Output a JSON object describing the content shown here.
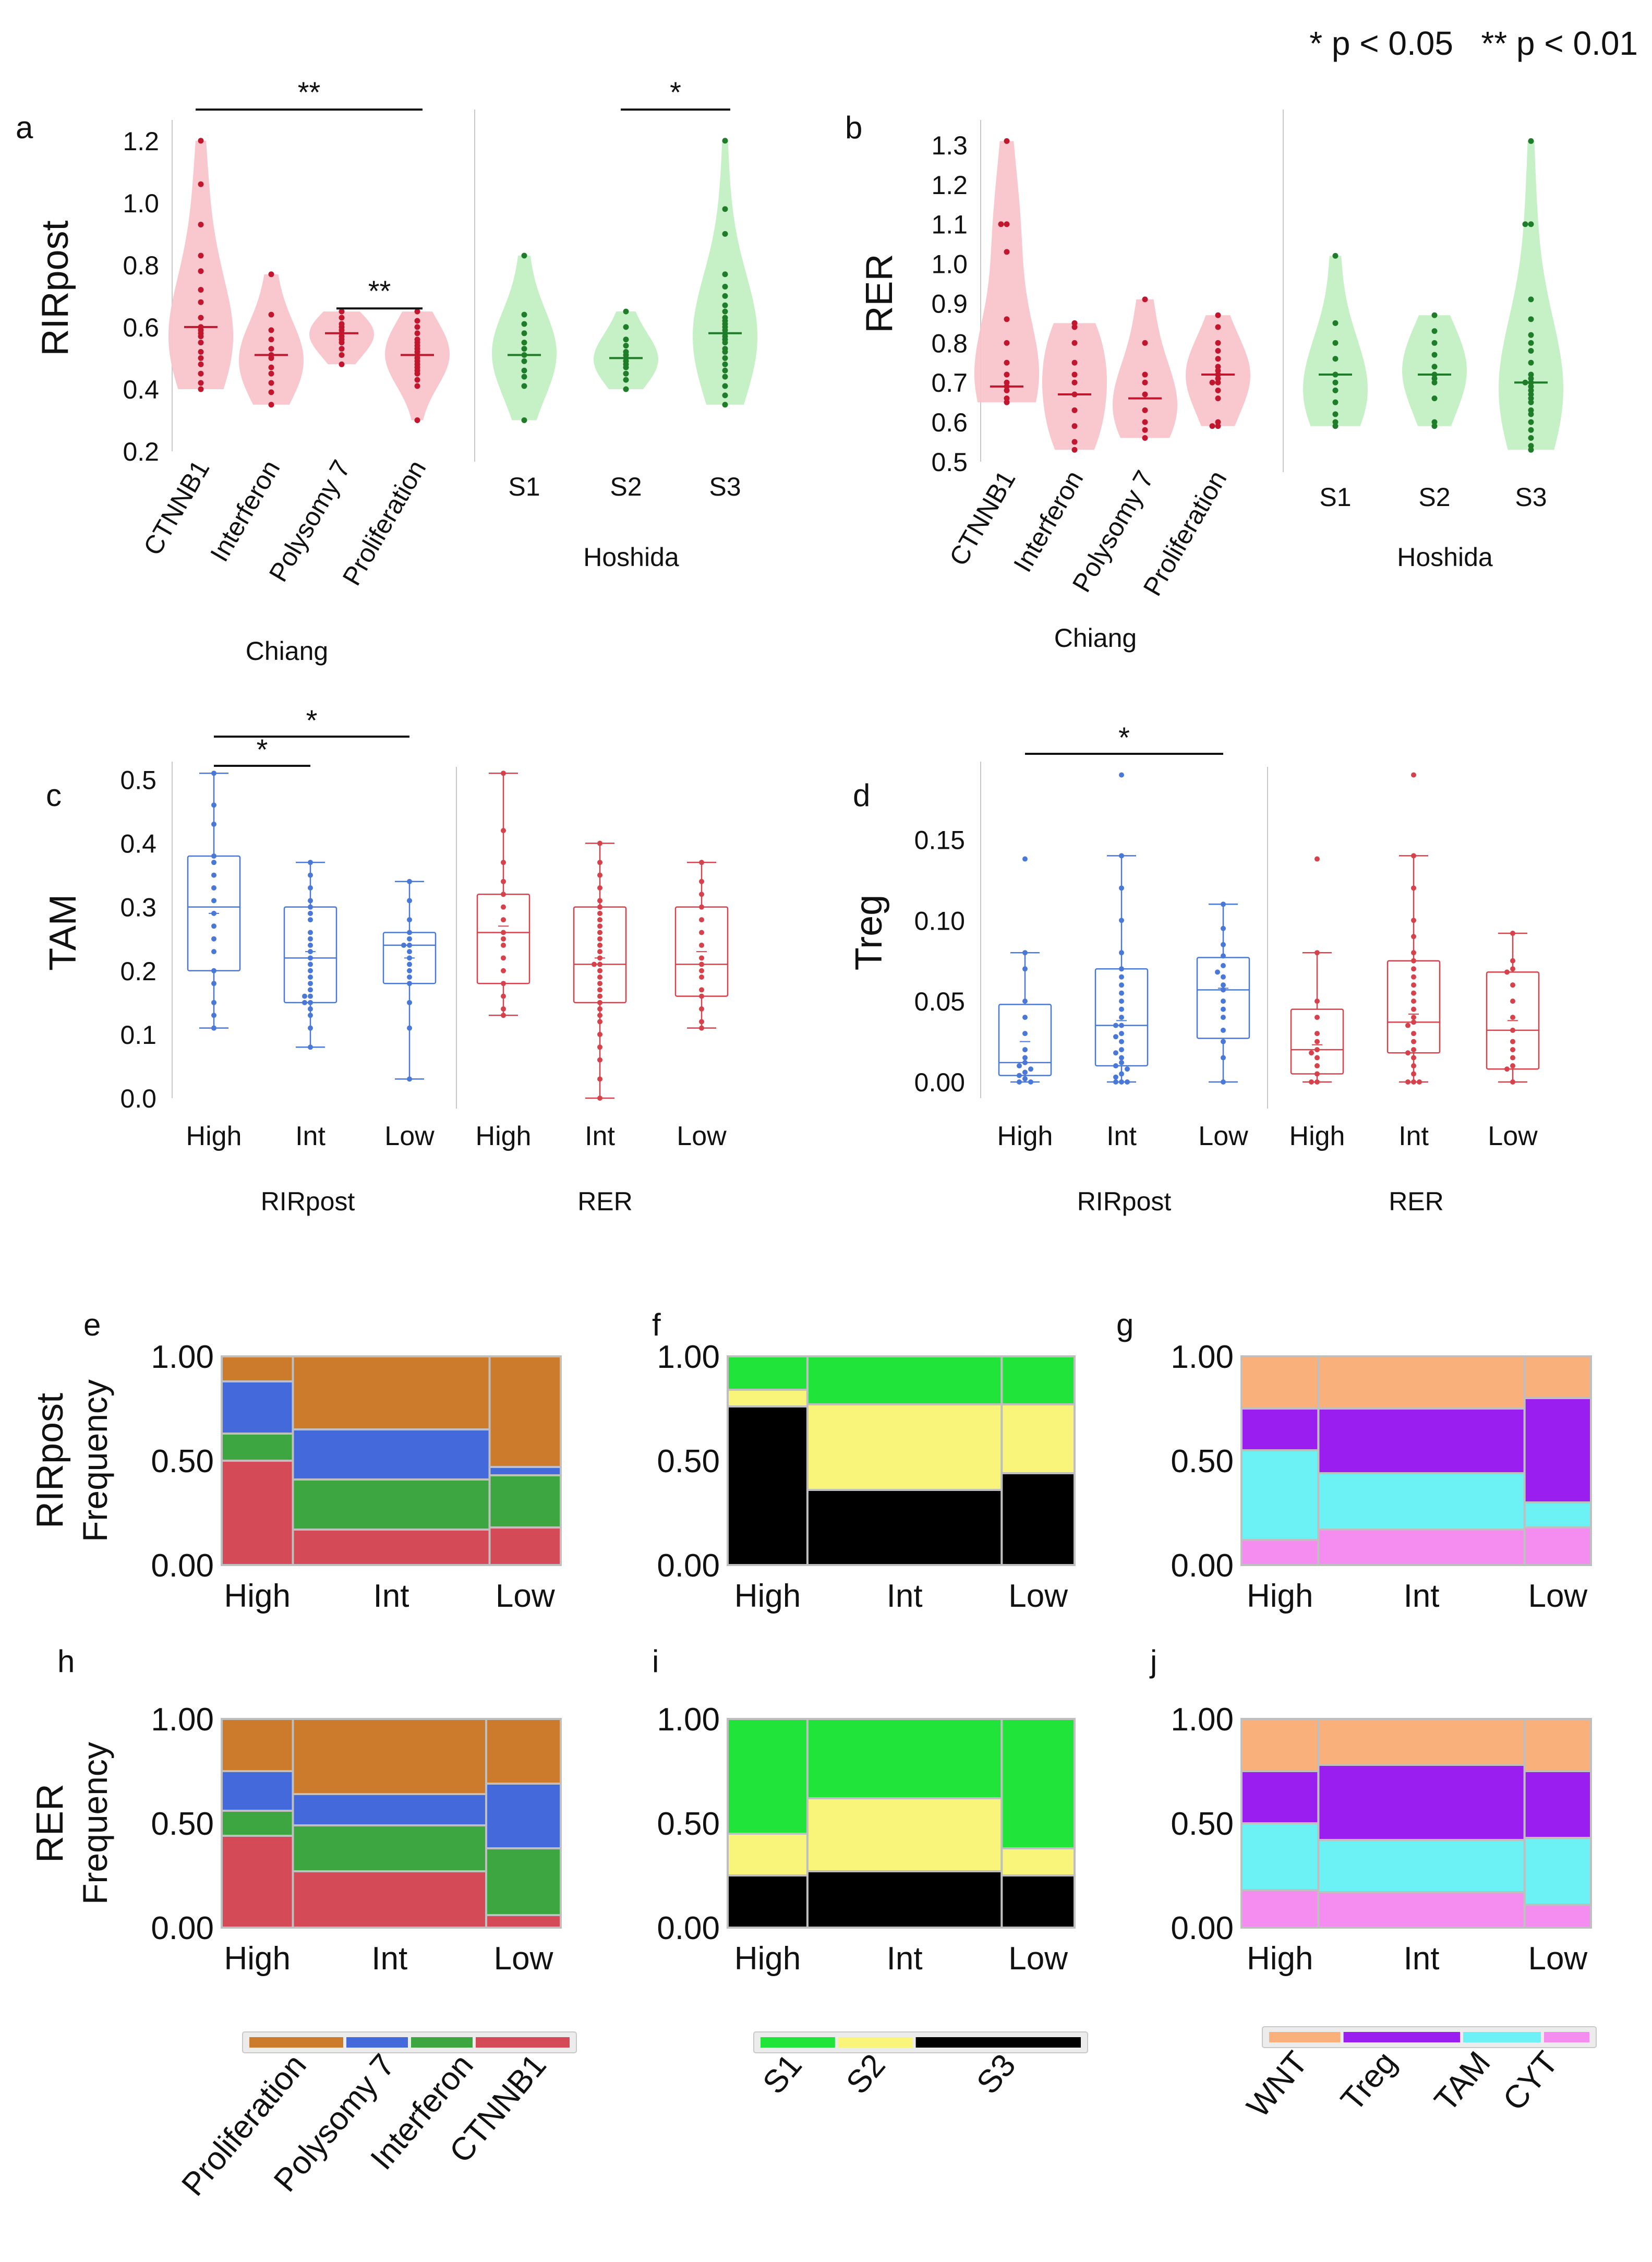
{
  "significance_legend": "* p < 0.05   ** p < 0.01",
  "panel_letters": {
    "a": "a",
    "b": "b",
    "c": "c",
    "d": "d",
    "e": "e",
    "f": "f",
    "g": "g",
    "h": "h",
    "i": "i",
    "j": "j"
  },
  "colors": {
    "chiang_fill": "#f9c5cc",
    "chiang_dot": "#c0172f",
    "hoshida_fill": "#c3f0c3",
    "hoshida_dot": "#1f7d2a",
    "rirpost_box": "#4a78d6",
    "rer_box": "#d6424c",
    "frame": "#bfbfbf"
  },
  "chart_data": [
    {
      "id": "a",
      "type": "violin",
      "ylabel": "RIRpost",
      "ylim": [
        0.2,
        1.25
      ],
      "yticks": [
        "0.2",
        "0.4",
        "0.6",
        "0.8",
        "1.0",
        "1.2"
      ],
      "groups": [
        {
          "label": "CTNNB1",
          "group": "Chiang",
          "values": [
            1.2,
            1.06,
            0.93,
            0.83,
            0.78,
            0.72,
            0.68,
            0.63,
            0.6,
            0.59,
            0.58,
            0.57,
            0.55,
            0.52,
            0.5,
            0.48,
            0.45,
            0.42,
            0.4
          ],
          "median": 0.6
        },
        {
          "label": "Interferon",
          "group": "Chiang",
          "values": [
            0.77,
            0.64,
            0.59,
            0.56,
            0.53,
            0.51,
            0.5,
            0.47,
            0.45,
            0.42,
            0.39,
            0.35
          ],
          "median": 0.51
        },
        {
          "label": "Polysomy 7",
          "group": "Chiang",
          "values": [
            0.65,
            0.63,
            0.61,
            0.6,
            0.59,
            0.58,
            0.57,
            0.56,
            0.55,
            0.53,
            0.51,
            0.48
          ],
          "median": 0.58
        },
        {
          "label": "Proliferation",
          "group": "Chiang",
          "values": [
            0.65,
            0.62,
            0.6,
            0.58,
            0.56,
            0.55,
            0.54,
            0.53,
            0.52,
            0.51,
            0.5,
            0.49,
            0.48,
            0.47,
            0.46,
            0.45,
            0.43,
            0.41,
            0.3
          ],
          "median": 0.51
        }
      ],
      "groups2": [
        {
          "label": "S1",
          "group": "Hoshida",
          "values": [
            0.83,
            0.64,
            0.61,
            0.58,
            0.55,
            0.53,
            0.51,
            0.49,
            0.46,
            0.44,
            0.41,
            0.3
          ],
          "median": 0.51
        },
        {
          "label": "S2",
          "group": "Hoshida",
          "values": [
            0.65,
            0.6,
            0.56,
            0.54,
            0.52,
            0.51,
            0.5,
            0.49,
            0.48,
            0.47,
            0.45,
            0.43,
            0.4
          ],
          "median": 0.5
        },
        {
          "label": "S3",
          "group": "Hoshida",
          "values": [
            1.2,
            0.98,
            0.9,
            0.77,
            0.73,
            0.7,
            0.67,
            0.65,
            0.63,
            0.62,
            0.61,
            0.6,
            0.59,
            0.58,
            0.57,
            0.56,
            0.55,
            0.53,
            0.52,
            0.5,
            0.48,
            0.46,
            0.44,
            0.41,
            0.38,
            0.35
          ],
          "median": 0.58
        }
      ],
      "group_labels": [
        "Chiang",
        "Hoshida"
      ],
      "annotations": [
        {
          "from": 0,
          "to": 3,
          "label": "**",
          "level": 0
        },
        {
          "from": 2,
          "to": 3,
          "label": "**",
          "level": 1
        },
        {
          "from": 5,
          "to": 6,
          "label": "*",
          "level": 0
        }
      ]
    },
    {
      "id": "b",
      "type": "violin",
      "ylabel": "RER",
      "ylim": [
        0.5,
        1.35
      ],
      "yticks": [
        "0.5",
        "0.6",
        "0.7",
        "0.8",
        "0.9",
        "1.0",
        "1.1",
        "1.2",
        "1.3"
      ],
      "groups": [
        {
          "label": "CTNNB1",
          "group": "Chiang",
          "values": [
            1.31,
            1.1,
            1.1,
            1.03,
            0.86,
            0.8,
            0.75,
            0.72,
            0.7,
            0.69,
            0.68,
            0.66,
            0.65
          ],
          "median": 0.69
        },
        {
          "label": "Interferon",
          "group": "Chiang",
          "values": [
            0.85,
            0.84,
            0.8,
            0.75,
            0.72,
            0.7,
            0.67,
            0.63,
            0.59,
            0.55,
            0.53
          ],
          "median": 0.67
        },
        {
          "label": "Polysomy 7",
          "group": "Chiang",
          "values": [
            0.91,
            0.8,
            0.72,
            0.7,
            0.67,
            0.63,
            0.6,
            0.58,
            0.56
          ],
          "median": 0.66
        },
        {
          "label": "Proliferation",
          "group": "Chiang",
          "values": [
            0.87,
            0.84,
            0.8,
            0.78,
            0.76,
            0.74,
            0.73,
            0.72,
            0.71,
            0.7,
            0.7,
            0.68,
            0.66,
            0.6,
            0.59,
            0.59
          ],
          "median": 0.72
        }
      ],
      "groups2": [
        {
          "label": "S1",
          "group": "Hoshida",
          "values": [
            1.02,
            0.85,
            0.8,
            0.76,
            0.72,
            0.7,
            0.68,
            0.65,
            0.62,
            0.6,
            0.59
          ],
          "median": 0.72
        },
        {
          "label": "S2",
          "group": "Hoshida",
          "values": [
            0.87,
            0.83,
            0.8,
            0.77,
            0.74,
            0.72,
            0.71,
            0.7,
            0.66,
            0.6,
            0.59
          ],
          "median": 0.72
        },
        {
          "label": "S3",
          "group": "Hoshida",
          "values": [
            1.31,
            1.1,
            1.1,
            0.91,
            0.86,
            0.82,
            0.8,
            0.78,
            0.75,
            0.72,
            0.71,
            0.7,
            0.7,
            0.69,
            0.68,
            0.67,
            0.66,
            0.65,
            0.63,
            0.62,
            0.6,
            0.58,
            0.56,
            0.54,
            0.53
          ],
          "median": 0.7
        }
      ],
      "group_labels": [
        "Chiang",
        "Hoshida"
      ],
      "annotations": []
    },
    {
      "id": "c",
      "type": "box",
      "ylabel": "TAM",
      "ylim": [
        0.0,
        0.52
      ],
      "yticks": [
        "0.0",
        "0.1",
        "0.2",
        "0.3",
        "0.4",
        "0.5"
      ],
      "groups": [
        {
          "label": "High",
          "group": "RIRpost",
          "min": 0.11,
          "q1": 0.2,
          "median": 0.3,
          "q3": 0.38,
          "max": 0.51,
          "mean": 0.29,
          "values": [
            0.51,
            0.46,
            0.43,
            0.38,
            0.37,
            0.35,
            0.33,
            0.31,
            0.29,
            0.27,
            0.25,
            0.23,
            0.2,
            0.18,
            0.15,
            0.13,
            0.11
          ]
        },
        {
          "label": "Int",
          "group": "RIRpost",
          "min": 0.08,
          "q1": 0.15,
          "median": 0.22,
          "q3": 0.3,
          "max": 0.37,
          "mean": 0.23,
          "values": [
            0.37,
            0.35,
            0.33,
            0.31,
            0.3,
            0.29,
            0.28,
            0.26,
            0.25,
            0.24,
            0.23,
            0.22,
            0.21,
            0.2,
            0.19,
            0.18,
            0.17,
            0.16,
            0.16,
            0.15,
            0.15,
            0.14,
            0.13,
            0.11,
            0.08
          ]
        },
        {
          "label": "Low",
          "group": "RIRpost",
          "min": 0.03,
          "q1": 0.18,
          "median": 0.24,
          "q3": 0.26,
          "max": 0.34,
          "mean": 0.22,
          "values": [
            0.34,
            0.31,
            0.28,
            0.26,
            0.25,
            0.24,
            0.24,
            0.23,
            0.22,
            0.21,
            0.2,
            0.19,
            0.18,
            0.15,
            0.11,
            0.03
          ]
        },
        {
          "label": "High",
          "group": "RER",
          "min": 0.13,
          "q1": 0.18,
          "median": 0.26,
          "q3": 0.32,
          "max": 0.51,
          "mean": 0.27,
          "values": [
            0.51,
            0.42,
            0.37,
            0.34,
            0.32,
            0.3,
            0.28,
            0.26,
            0.25,
            0.24,
            0.22,
            0.2,
            0.18,
            0.16,
            0.14,
            0.13
          ]
        },
        {
          "label": "Int",
          "group": "RER",
          "min": 0.0,
          "q1": 0.15,
          "median": 0.21,
          "q3": 0.3,
          "max": 0.4,
          "mean": 0.22,
          "values": [
            0.4,
            0.37,
            0.35,
            0.33,
            0.31,
            0.3,
            0.29,
            0.28,
            0.27,
            0.26,
            0.25,
            0.24,
            0.23,
            0.22,
            0.21,
            0.21,
            0.2,
            0.19,
            0.18,
            0.17,
            0.16,
            0.15,
            0.14,
            0.13,
            0.12,
            0.1,
            0.08,
            0.06,
            0.03,
            0.0
          ]
        },
        {
          "label": "Low",
          "group": "RER",
          "min": 0.11,
          "q1": 0.16,
          "median": 0.21,
          "q3": 0.3,
          "max": 0.37,
          "mean": 0.23,
          "values": [
            0.37,
            0.34,
            0.32,
            0.3,
            0.28,
            0.26,
            0.24,
            0.22,
            0.21,
            0.2,
            0.19,
            0.17,
            0.16,
            0.14,
            0.12,
            0.11
          ]
        }
      ],
      "group_labels": [
        "RIRpost",
        "RER"
      ],
      "annotations": [
        {
          "from": 0,
          "to": 1,
          "label": "*",
          "level": 0
        },
        {
          "from": 0,
          "to": 2,
          "label": "*",
          "level": 1
        }
      ]
    },
    {
      "id": "d",
      "type": "box",
      "ylabel": "Treg",
      "ylim": [
        -0.01,
        0.195
      ],
      "ytickvals": [
        0.0,
        0.05,
        0.1,
        0.15
      ],
      "yticks": [
        "0.00",
        "0.05",
        "0.10",
        "0.15"
      ],
      "groups": [
        {
          "label": "High",
          "group": "RIRpost",
          "min": 0.0,
          "q1": 0.004,
          "median": 0.012,
          "q3": 0.048,
          "max": 0.08,
          "mean": 0.025,
          "values": [
            0.138,
            0.08,
            0.07,
            0.05,
            0.04,
            0.03,
            0.02,
            0.015,
            0.012,
            0.01,
            0.008,
            0.006,
            0.004,
            0.002,
            0.0,
            0.0
          ]
        },
        {
          "label": "Int",
          "group": "RIRpost",
          "min": 0.0,
          "q1": 0.01,
          "median": 0.035,
          "q3": 0.07,
          "max": 0.14,
          "mean": 0.038,
          "values": [
            0.19,
            0.14,
            0.12,
            0.1,
            0.08,
            0.07,
            0.065,
            0.06,
            0.055,
            0.05,
            0.045,
            0.04,
            0.035,
            0.035,
            0.03,
            0.028,
            0.025,
            0.02,
            0.018,
            0.015,
            0.012,
            0.01,
            0.008,
            0.005,
            0.003,
            0.0,
            0.0,
            0.0
          ]
        },
        {
          "label": "Low",
          "group": "RIRpost",
          "min": 0.0,
          "q1": 0.027,
          "median": 0.057,
          "q3": 0.077,
          "max": 0.11,
          "mean": 0.058,
          "values": [
            0.11,
            0.095,
            0.085,
            0.078,
            0.072,
            0.068,
            0.065,
            0.06,
            0.057,
            0.05,
            0.045,
            0.04,
            0.032,
            0.025,
            0.015,
            0.0
          ]
        },
        {
          "label": "High",
          "group": "RER",
          "min": 0.0,
          "q1": 0.005,
          "median": 0.02,
          "q3": 0.045,
          "max": 0.08,
          "mean": 0.023,
          "values": [
            0.138,
            0.08,
            0.05,
            0.04,
            0.03,
            0.025,
            0.02,
            0.018,
            0.015,
            0.01,
            0.005,
            0.0,
            0.0
          ]
        },
        {
          "label": "Int",
          "group": "RER",
          "min": 0.0,
          "q1": 0.018,
          "median": 0.037,
          "q3": 0.075,
          "max": 0.14,
          "mean": 0.042,
          "values": [
            0.19,
            0.14,
            0.12,
            0.1,
            0.09,
            0.08,
            0.075,
            0.07,
            0.065,
            0.06,
            0.055,
            0.05,
            0.045,
            0.04,
            0.037,
            0.035,
            0.03,
            0.025,
            0.02,
            0.018,
            0.015,
            0.01,
            0.005,
            0.0,
            0.0,
            0.0
          ]
        },
        {
          "label": "Low",
          "group": "RER",
          "min": 0.0,
          "q1": 0.008,
          "median": 0.032,
          "q3": 0.068,
          "max": 0.092,
          "mean": 0.038,
          "values": [
            0.092,
            0.075,
            0.07,
            0.068,
            0.06,
            0.05,
            0.04,
            0.032,
            0.025,
            0.02,
            0.015,
            0.01,
            0.008,
            0.0
          ]
        }
      ],
      "group_labels": [
        "RIRpost",
        "RER"
      ],
      "annotations": [
        {
          "from": 0,
          "to": 2,
          "label": "*",
          "level": 0
        }
      ]
    },
    {
      "id": "e",
      "type": "mosaic",
      "ylabel": "RIRpost",
      "ylabel2": "Frequency",
      "yticks": [
        "0.00",
        "0.50",
        "1.00"
      ],
      "categories": [
        "High",
        "Int",
        "Low"
      ],
      "widths": [
        0.21,
        0.58,
        0.21
      ],
      "legend": "chiang",
      "segments": [
        [
          0.5,
          0.13,
          0.25,
          0.12
        ],
        [
          0.17,
          0.24,
          0.24,
          0.35
        ],
        [
          0.18,
          0.25,
          0.04,
          0.53
        ]
      ]
    },
    {
      "id": "f",
      "type": "mosaic",
      "yticks": [
        "0.00",
        "0.50",
        "1.00"
      ],
      "categories": [
        "High",
        "Int",
        "Low"
      ],
      "widths": [
        0.23,
        0.56,
        0.21
      ],
      "legend": "hoshida",
      "segments": [
        [
          0.76,
          0.08,
          0.16
        ],
        [
          0.36,
          0.41,
          0.23
        ],
        [
          0.44,
          0.33,
          0.23
        ]
      ]
    },
    {
      "id": "g",
      "type": "mosaic",
      "yticks": [
        "0.00",
        "0.50",
        "1.00"
      ],
      "categories": [
        "High",
        "Int",
        "Low"
      ],
      "widths": [
        0.22,
        0.59,
        0.19
      ],
      "legend": "immune",
      "segments": [
        [
          0.12,
          0.43,
          0.2,
          0.25
        ],
        [
          0.17,
          0.27,
          0.31,
          0.25
        ],
        [
          0.18,
          0.12,
          0.5,
          0.2
        ]
      ]
    },
    {
      "id": "h",
      "type": "mosaic",
      "ylabel": "RER",
      "ylabel2": "Frequency",
      "yticks": [
        "0.00",
        "0.50",
        "1.00"
      ],
      "categories": [
        "High",
        "Int",
        "Low"
      ],
      "widths": [
        0.21,
        0.57,
        0.22
      ],
      "legend": "chiang",
      "segments": [
        [
          0.44,
          0.12,
          0.19,
          0.25
        ],
        [
          0.27,
          0.22,
          0.15,
          0.36
        ],
        [
          0.06,
          0.32,
          0.31,
          0.31
        ]
      ]
    },
    {
      "id": "i",
      "type": "mosaic",
      "yticks": [
        "0.00",
        "0.50",
        "1.00"
      ],
      "categories": [
        "High",
        "Int",
        "Low"
      ],
      "widths": [
        0.23,
        0.56,
        0.21
      ],
      "legend": "hoshida",
      "segments": [
        [
          0.25,
          0.2,
          0.55
        ],
        [
          0.27,
          0.35,
          0.38
        ],
        [
          0.25,
          0.13,
          0.62
        ]
      ]
    },
    {
      "id": "j",
      "type": "mosaic",
      "yticks": [
        "0.00",
        "0.50",
        "1.00"
      ],
      "categories": [
        "High",
        "Int",
        "Low"
      ],
      "widths": [
        0.22,
        0.59,
        0.19
      ],
      "legend": "immune",
      "segments": [
        [
          0.18,
          0.32,
          0.25,
          0.25
        ],
        [
          0.17,
          0.25,
          0.36,
          0.22
        ],
        [
          0.11,
          0.32,
          0.32,
          0.25
        ]
      ]
    }
  ],
  "legends": {
    "chiang": {
      "labels": [
        "Proliferation",
        "Polysomy 7",
        "Interferon",
        "CTNNB1"
      ],
      "colors": [
        "#cc7a2b",
        "#4369db",
        "#3ea640",
        "#d44a57"
      ],
      "seg_order": [
        3,
        2,
        1,
        0
      ]
    },
    "hoshida": {
      "labels": [
        "S1",
        "S2",
        "S3"
      ],
      "colors": [
        "#21e43a",
        "#f8f57a",
        "#000000"
      ],
      "seg_order": [
        2,
        1,
        0
      ]
    },
    "immune": {
      "labels": [
        "WNT",
        "Treg",
        "TAM",
        "CYT"
      ],
      "colors": [
        "#f9b07b",
        "#9b1ef0",
        "#6cf2f5",
        "#f58cf0"
      ],
      "seg_order": [
        3,
        2,
        1,
        0
      ]
    }
  }
}
